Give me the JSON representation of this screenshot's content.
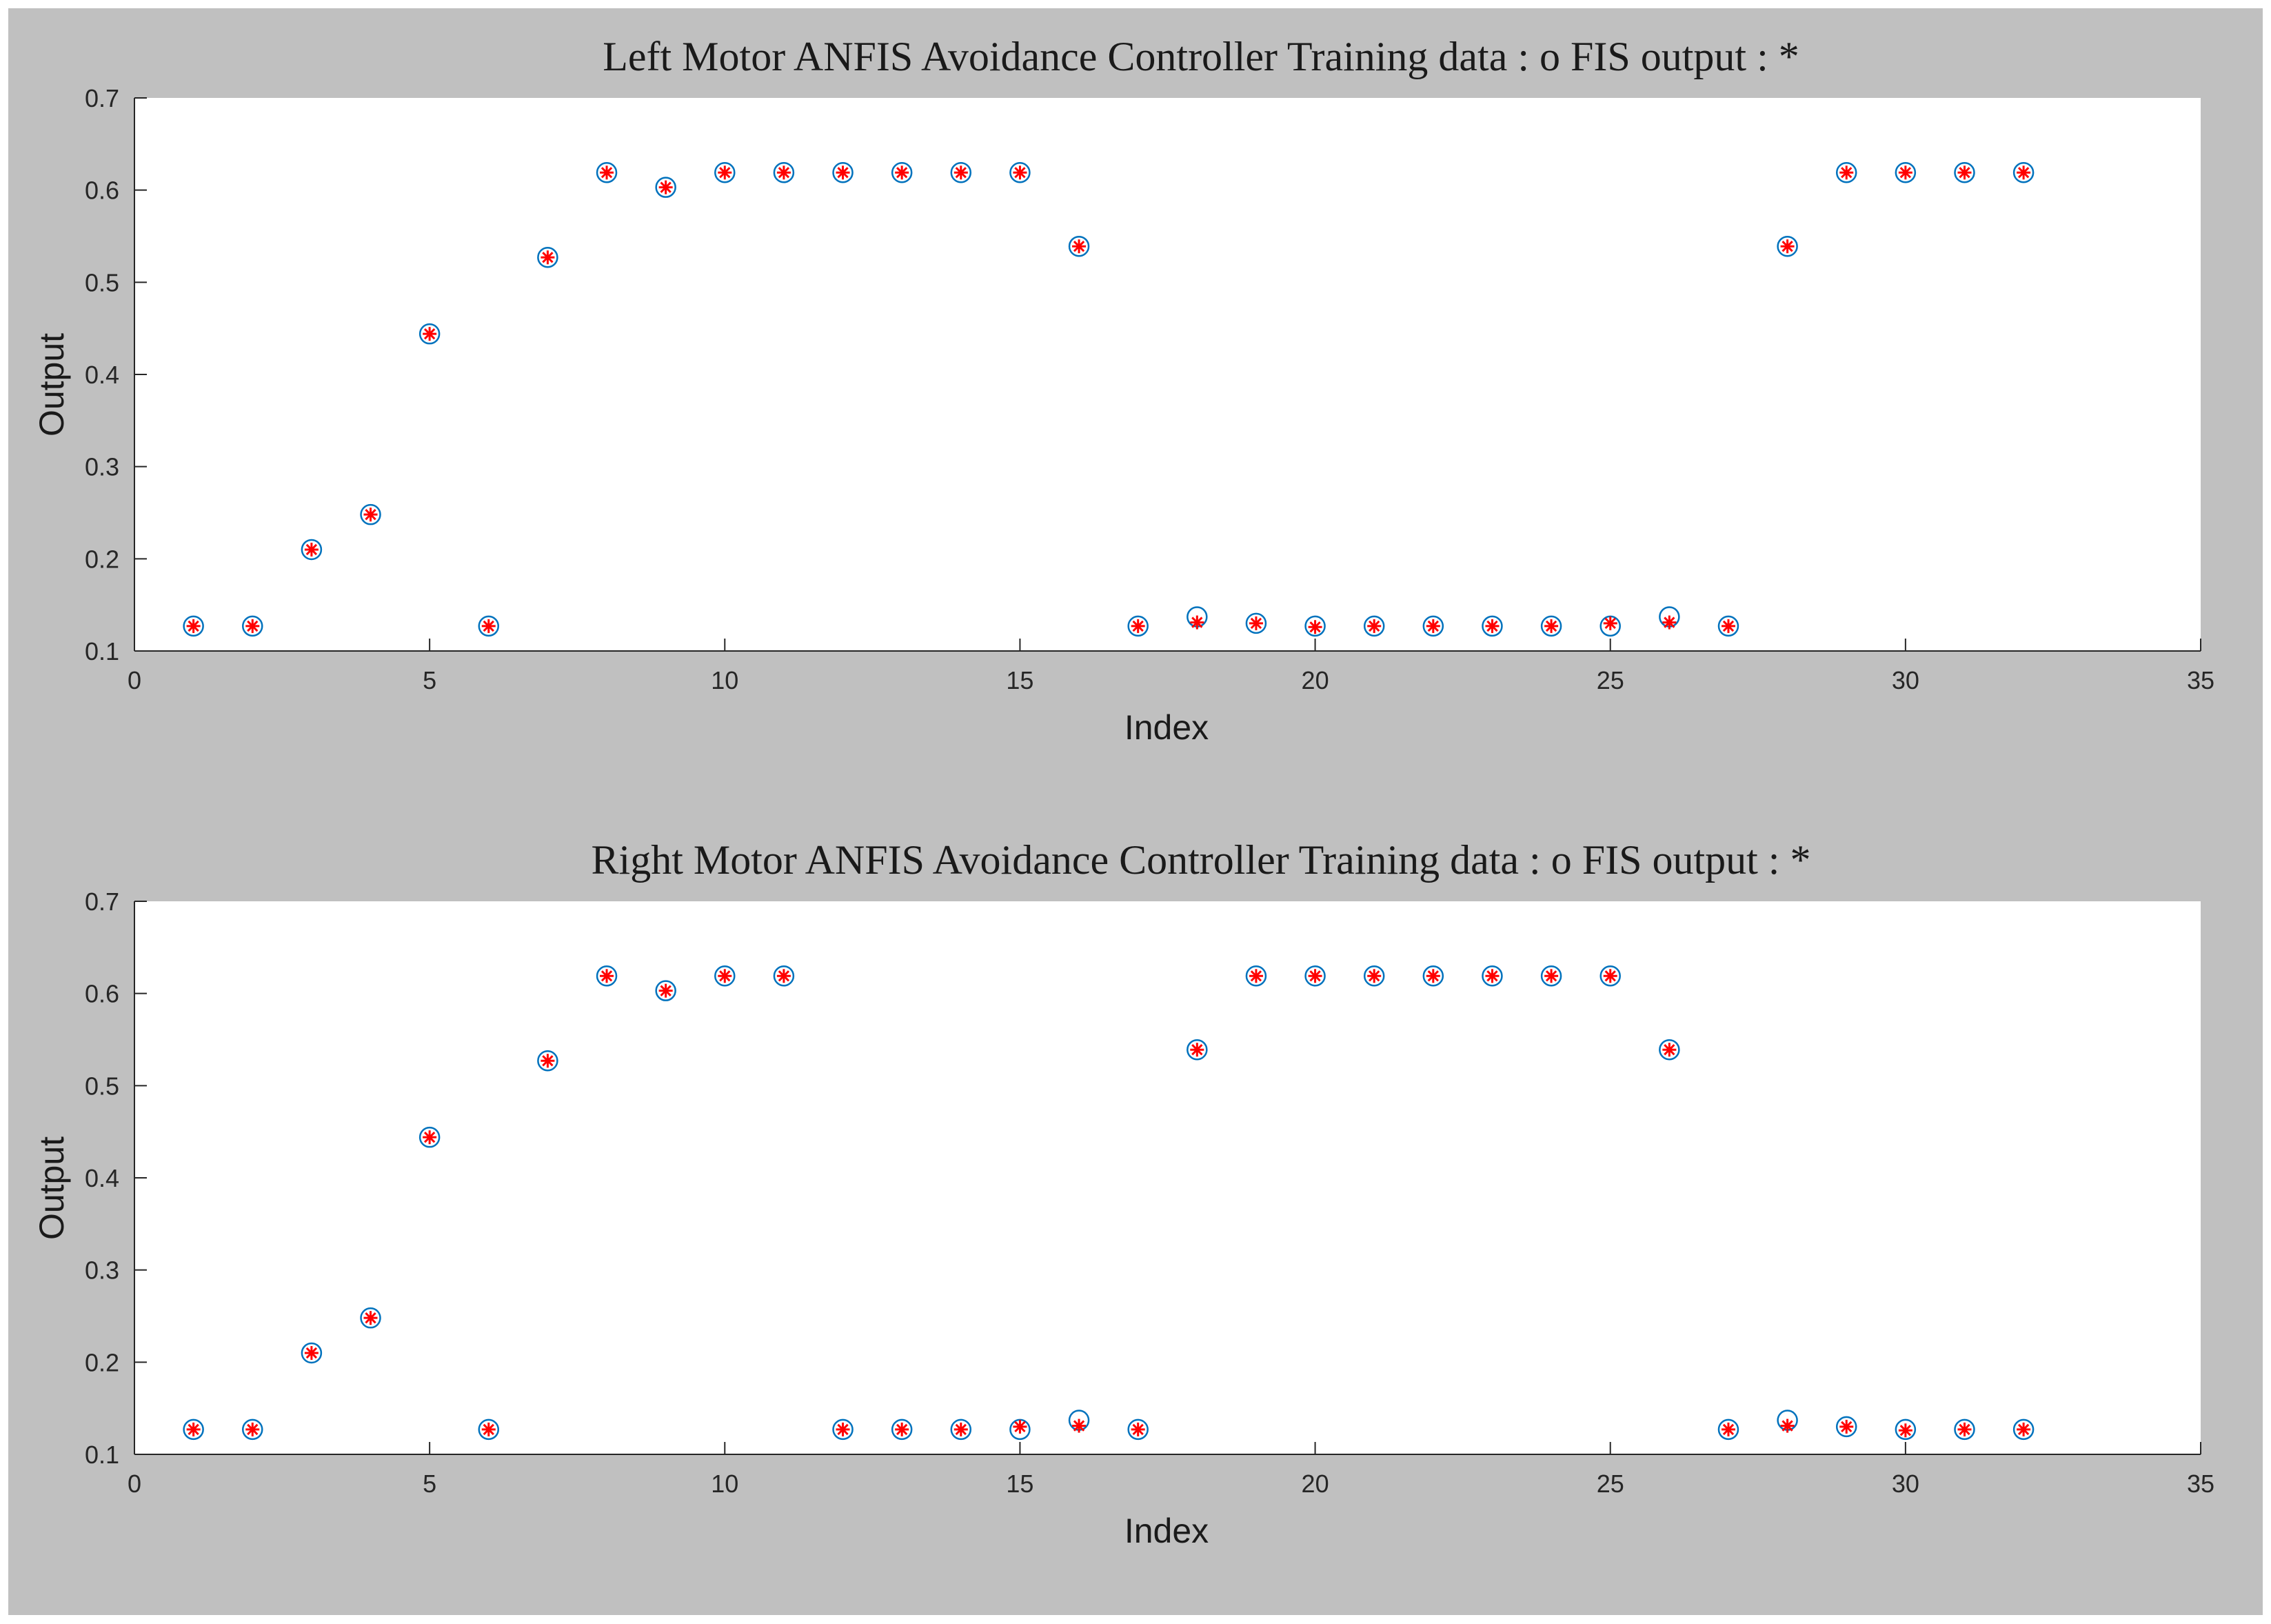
{
  "chart_data": [
    {
      "type": "scatter",
      "title": "Left Motor ANFIS Avoidance Controller Training data : o   FIS output : *",
      "xlabel": "Index",
      "ylabel": "Output",
      "xlim": [
        0,
        35
      ],
      "ylim": [
        0.1,
        0.7
      ],
      "xticks": [
        "0",
        "5",
        "10",
        "15",
        "20",
        "25",
        "30",
        "35"
      ],
      "yticks": [
        "0.1",
        "0.2",
        "0.3",
        "0.4",
        "0.5",
        "0.6",
        "0.7"
      ],
      "grid": false,
      "series": [
        {
          "marker": "o",
          "color": "#0072bd",
          "x": [
            1,
            2,
            3,
            4,
            5,
            6,
            7,
            8,
            9,
            10,
            11,
            12,
            13,
            14,
            15,
            16,
            17,
            18,
            19,
            20,
            21,
            22,
            23,
            24,
            25,
            26,
            27,
            28,
            29,
            30,
            31,
            32
          ],
          "y": [
            0.127,
            0.127,
            0.21,
            0.248,
            0.444,
            0.127,
            0.527,
            0.619,
            0.603,
            0.619,
            0.619,
            0.619,
            0.619,
            0.619,
            0.619,
            0.539,
            0.127,
            0.137,
            0.13,
            0.127,
            0.127,
            0.127,
            0.127,
            0.127,
            0.127,
            0.137,
            0.127,
            0.539,
            0.619,
            0.619,
            0.619,
            0.619
          ]
        },
        {
          "marker": "*",
          "color": "#ff0000",
          "x": [
            1,
            2,
            3,
            4,
            5,
            6,
            7,
            8,
            9,
            10,
            11,
            12,
            13,
            14,
            15,
            16,
            17,
            18,
            19,
            20,
            21,
            22,
            23,
            24,
            25,
            26,
            27,
            28,
            29,
            30,
            31,
            32
          ],
          "y": [
            0.127,
            0.127,
            0.21,
            0.248,
            0.444,
            0.127,
            0.527,
            0.619,
            0.603,
            0.619,
            0.619,
            0.619,
            0.619,
            0.619,
            0.619,
            0.539,
            0.127,
            0.131,
            0.13,
            0.126,
            0.127,
            0.127,
            0.127,
            0.127,
            0.13,
            0.131,
            0.127,
            0.539,
            0.619,
            0.619,
            0.619,
            0.619
          ]
        }
      ]
    },
    {
      "type": "scatter",
      "title": "Right Motor ANFIS Avoidance Controller Training data : o   FIS output : *",
      "xlabel": "Index",
      "ylabel": "Output",
      "xlim": [
        0,
        35
      ],
      "ylim": [
        0.1,
        0.7
      ],
      "xticks": [
        "0",
        "5",
        "10",
        "15",
        "20",
        "25",
        "30",
        "35"
      ],
      "yticks": [
        "0.1",
        "0.2",
        "0.3",
        "0.4",
        "0.5",
        "0.6",
        "0.7"
      ],
      "grid": false,
      "series": [
        {
          "marker": "o",
          "color": "#0072bd",
          "x": [
            1,
            2,
            3,
            4,
            5,
            6,
            7,
            8,
            9,
            10,
            11,
            12,
            13,
            14,
            15,
            16,
            17,
            18,
            19,
            20,
            21,
            22,
            23,
            24,
            25,
            26,
            27,
            28,
            29,
            30,
            31,
            32
          ],
          "y": [
            0.127,
            0.127,
            0.21,
            0.248,
            0.444,
            0.127,
            0.527,
            0.619,
            0.603,
            0.619,
            0.619,
            0.127,
            0.127,
            0.127,
            0.127,
            0.137,
            0.127,
            0.539,
            0.619,
            0.619,
            0.619,
            0.619,
            0.619,
            0.619,
            0.619,
            0.539,
            0.127,
            0.137,
            0.13,
            0.127,
            0.127,
            0.127
          ]
        },
        {
          "marker": "*",
          "color": "#ff0000",
          "x": [
            1,
            2,
            3,
            4,
            5,
            6,
            7,
            8,
            9,
            10,
            11,
            12,
            13,
            14,
            15,
            16,
            17,
            18,
            19,
            20,
            21,
            22,
            23,
            24,
            25,
            26,
            27,
            28,
            29,
            30,
            31,
            32
          ],
          "y": [
            0.127,
            0.127,
            0.21,
            0.248,
            0.444,
            0.127,
            0.527,
            0.619,
            0.603,
            0.619,
            0.619,
            0.127,
            0.127,
            0.127,
            0.13,
            0.131,
            0.127,
            0.539,
            0.619,
            0.619,
            0.619,
            0.619,
            0.619,
            0.619,
            0.619,
            0.539,
            0.127,
            0.131,
            0.13,
            0.126,
            0.127,
            0.127
          ]
        }
      ]
    }
  ]
}
